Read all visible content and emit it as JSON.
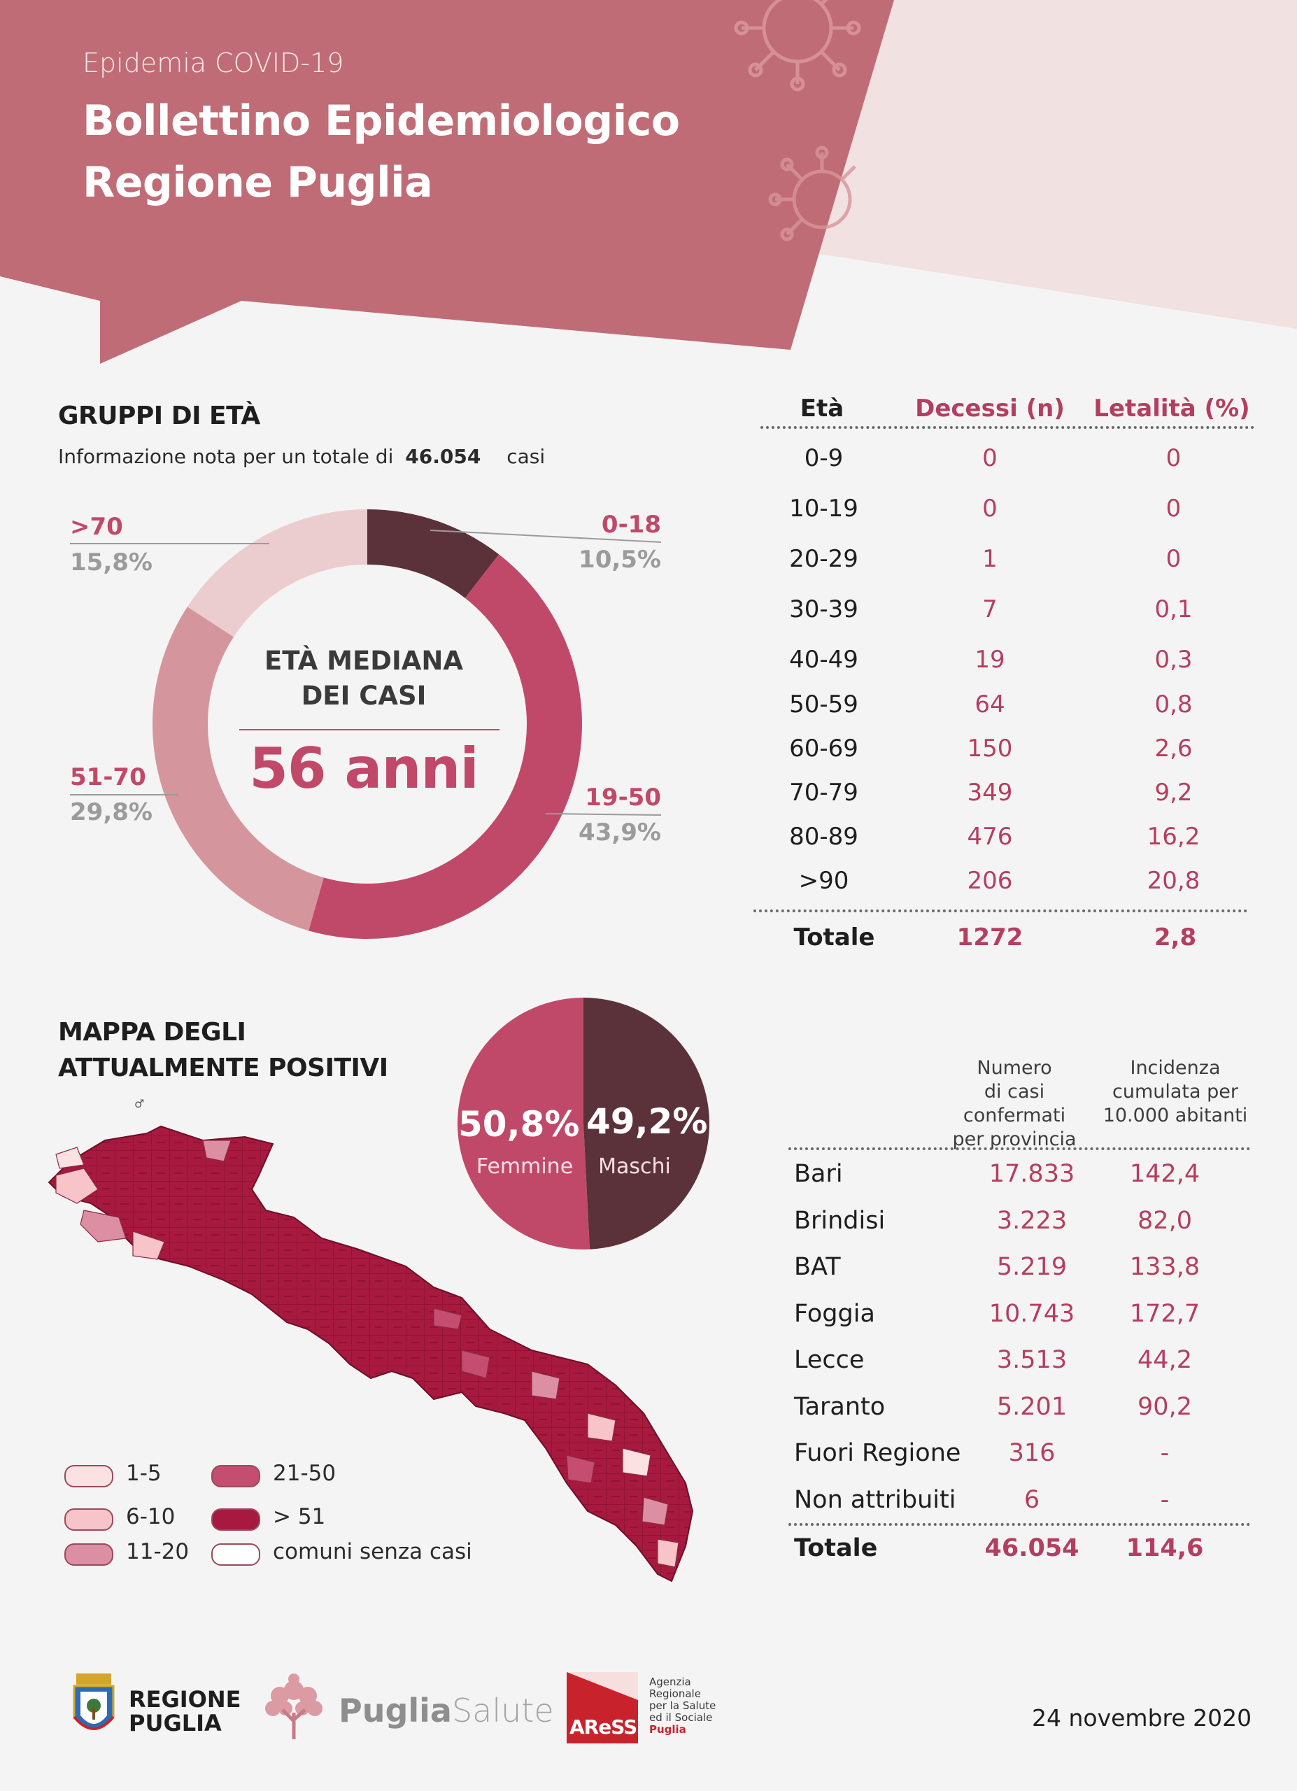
{
  "header": {
    "subtitle": "Epidemia COVID-19",
    "title_line1": "Bollettino Epidemiologico",
    "title_line2": "Regione Puglia",
    "colors": {
      "banner": "#c06c76",
      "banner_light": "#f1e1e1",
      "accent": "#c0496a"
    }
  },
  "age_groups": {
    "title": "GRUPPI DI ETÀ",
    "info_prefix": "Informazione nota per un totale di",
    "info_total": "46.054",
    "info_suffix": "casi",
    "center_caption_line1": "ETÀ MEDIANA",
    "center_caption_line2": "DEI CASI",
    "median_value": "56 anni",
    "labels": [
      {
        "name": "0-18",
        "pct": "10,5%"
      },
      {
        "name": "19-50",
        "pct": "43,9%"
      },
      {
        "name": "51-70",
        "pct": "29,8%"
      },
      {
        "name": ">70",
        "pct": "15,8%"
      }
    ]
  },
  "chart_data": [
    {
      "type": "pie",
      "variant": "donut",
      "categories": [
        "0-18",
        "19-50",
        "51-70",
        ">70"
      ],
      "values": [
        10.5,
        43.9,
        29.8,
        15.8
      ],
      "colors": [
        "#5c323a",
        "#c0496a",
        "#d4969c",
        "#ebcdd0"
      ]
    },
    {
      "type": "pie",
      "categories": [
        "Femmine",
        "Maschi"
      ],
      "values": [
        50.8,
        49.2
      ],
      "colors": [
        "#c0496a",
        "#5c323a"
      ]
    }
  ],
  "mortality_table": {
    "headers": {
      "age": "Età",
      "deaths": "Decessi (n)",
      "lethality": "Letalità (%)"
    },
    "rows": [
      {
        "age": "0-9",
        "deaths": "0",
        "lethality": "0"
      },
      {
        "age": "10-19",
        "deaths": "0",
        "lethality": "0"
      },
      {
        "age": "20-29",
        "deaths": "1",
        "lethality": "0"
      },
      {
        "age": "30-39",
        "deaths": "7",
        "lethality": "0,1"
      },
      {
        "age": "40-49",
        "deaths": "19",
        "lethality": "0,3"
      },
      {
        "age": "50-59",
        "deaths": "64",
        "lethality": "0,8"
      },
      {
        "age": "60-69",
        "deaths": "150",
        "lethality": "2,6"
      },
      {
        "age": "70-79",
        "deaths": "349",
        "lethality": "9,2"
      },
      {
        "age": "80-89",
        "deaths": "476",
        "lethality": "16,2"
      },
      {
        "age": ">90",
        "deaths": "206",
        "lethality": "20,8"
      }
    ],
    "total": {
      "label": "Totale",
      "deaths": "1272",
      "lethality": "2,8"
    }
  },
  "map": {
    "title_line1": "MAPPA DEGLI",
    "title_line2": "ATTUALMENTE POSITIVI",
    "legend": [
      {
        "label": "1-5",
        "color": "#fbe1e1"
      },
      {
        "label": "6-10",
        "color": "#f6c4c9"
      },
      {
        "label": "11-20",
        "color": "#dc8ea3"
      },
      {
        "label": "21-50",
        "color": "#c44d70"
      },
      {
        "label": "> 51",
        "color": "#a8193f"
      },
      {
        "label": "comuni senza casi",
        "color": "#ffffff"
      }
    ]
  },
  "sex": {
    "female_pct": "50,8%",
    "female_label": "Femmine",
    "male_pct": "49,2%",
    "male_label": "Maschi"
  },
  "province_table": {
    "header_cases": [
      "Numero",
      "di casi confermati",
      "per provincia"
    ],
    "header_incidence": [
      "Incidenza",
      "cumulata per",
      "10.000 abitanti"
    ],
    "rows": [
      {
        "name": "Bari",
        "cases": "17.833",
        "incidence": "142,4"
      },
      {
        "name": "Brindisi",
        "cases": "3.223",
        "incidence": "82,0"
      },
      {
        "name": "BAT",
        "cases": "5.219",
        "incidence": "133,8"
      },
      {
        "name": "Foggia",
        "cases": "10.743",
        "incidence": "172,7"
      },
      {
        "name": "Lecce",
        "cases": "3.513",
        "incidence": "44,2"
      },
      {
        "name": "Taranto",
        "cases": "5.201",
        "incidence": "90,2"
      },
      {
        "name": "Fuori Regione",
        "cases": "316",
        "incidence": "-"
      },
      {
        "name": "Non attribuiti",
        "cases": "6",
        "incidence": "-"
      }
    ],
    "total": {
      "label": "Totale",
      "cases": "46.054",
      "incidence": "114,6"
    }
  },
  "footer": {
    "logo1_line1": "REGIONE",
    "logo1_line2": "PUGLIA",
    "logo2_part1": "Puglia",
    "logo2_part2": "Salute",
    "logo3_mark": "AReSS",
    "logo3_text": [
      "Agenzia",
      "Regionale",
      "per la Salute",
      "ed il Sociale",
      "Puglia"
    ],
    "date": "24 novembre 2020"
  }
}
